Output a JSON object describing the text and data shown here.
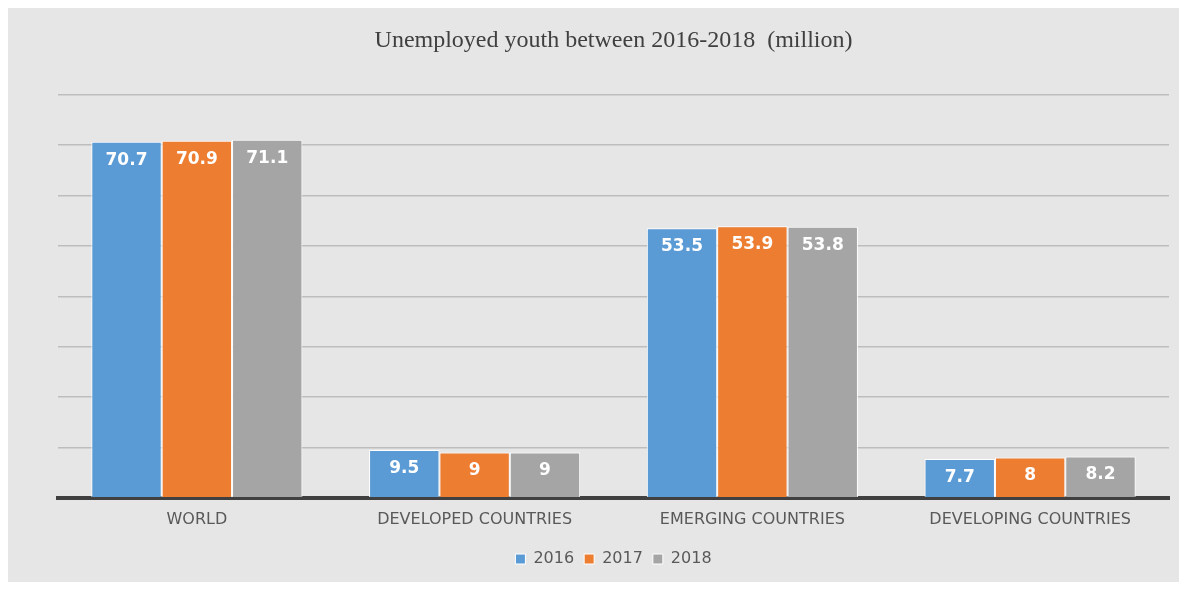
{
  "chart_data": {
    "type": "bar",
    "title": "Unemployed youth between 2016-2018  (million)",
    "categories": [
      "WORLD",
      "DEVELOPED COUNTRIES",
      "EMERGING COUNTRIES",
      "DEVELOPING COUNTRIES"
    ],
    "series": [
      {
        "name": "2016",
        "color": "#5b9bd5",
        "values": [
          70.7,
          9.5,
          53.5,
          7.7
        ]
      },
      {
        "name": "2017",
        "color": "#ed7d31",
        "values": [
          70.9,
          9,
          53.9,
          8
        ]
      },
      {
        "name": "2018",
        "color": "#a5a5a5",
        "values": [
          71.1,
          9,
          53.8,
          8.2
        ]
      }
    ],
    "tick_labels": "x",
    "grid": "y",
    "legend": "bottom",
    "data_labels": true
  }
}
